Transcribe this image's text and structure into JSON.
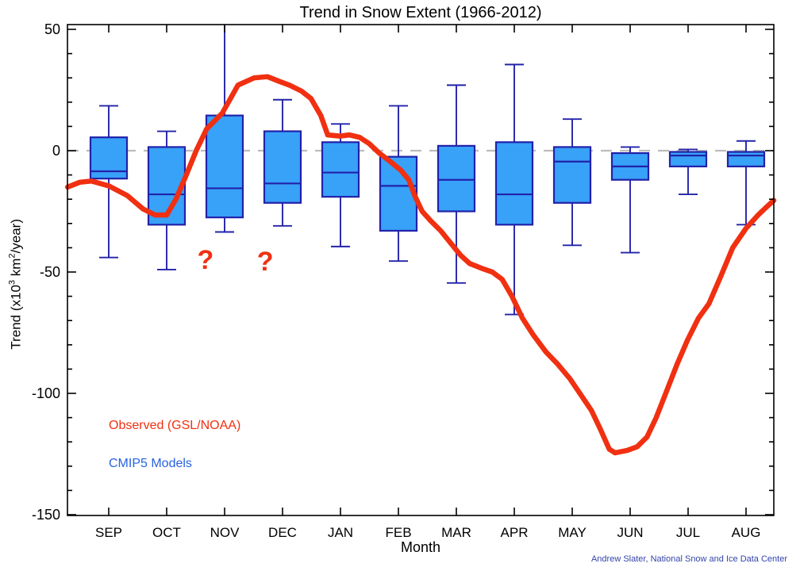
{
  "header": {
    "title": "Trend in Snow Extent (1966-2012)"
  },
  "chart_data": {
    "type": "box",
    "title": "Trend in Snow Extent (1966-2012)",
    "xlabel": "Month",
    "ylabel": "Trend (x10^3 km^2/year)",
    "ylabel_parts": {
      "pre": "Trend (x10",
      "sup1": "3",
      "mid": " km",
      "sup2": "2",
      "post": "/year)"
    },
    "x_categories": [
      "SEP",
      "OCT",
      "NOV",
      "DEC",
      "JAN",
      "FEB",
      "MAR",
      "APR",
      "MAY",
      "JUN",
      "JUL",
      "AUG"
    ],
    "y_axis": {
      "min": -150.3,
      "max": 52,
      "major_ticks": [
        {
          "value": 50,
          "label": "50"
        },
        {
          "value": 0,
          "label": "0"
        },
        {
          "value": -50,
          "label": "-50"
        },
        {
          "value": -100,
          "label": "-100"
        },
        {
          "value": -150,
          "label": "-150"
        }
      ],
      "minor_step": 10
    },
    "zero_line": {
      "value": 0,
      "style": "dashed"
    },
    "grid": "off",
    "legend_position": "lower-left-inside",
    "series": [
      {
        "name": "Observed (GSL/NOAA)",
        "type": "line",
        "color": "#f03011",
        "points_month_value": [
          [
            -0.71,
            -15
          ],
          [
            -0.5,
            -13
          ],
          [
            -0.3,
            -12.5
          ],
          [
            0,
            -14.5
          ],
          [
            0.32,
            -18.5
          ],
          [
            0.59,
            -24
          ],
          [
            0.8,
            -26.5
          ],
          [
            1,
            -26.5
          ],
          [
            1.16,
            -20
          ],
          [
            1.33,
            -10.5
          ],
          [
            1.51,
            0
          ],
          [
            1.69,
            9
          ],
          [
            1.96,
            15.5
          ],
          [
            2.23,
            27
          ],
          [
            2.51,
            30
          ],
          [
            2.74,
            30.5
          ],
          [
            2.95,
            28.5
          ],
          [
            3.12,
            27
          ],
          [
            3.33,
            24.5
          ],
          [
            3.49,
            21.5
          ],
          [
            3.66,
            14.5
          ],
          [
            3.78,
            6.5
          ],
          [
            3.99,
            6
          ],
          [
            4.15,
            6.5
          ],
          [
            4.33,
            5.5
          ],
          [
            4.49,
            3
          ],
          [
            4.67,
            -1
          ],
          [
            4.86,
            -4.5
          ],
          [
            5.04,
            -8
          ],
          [
            5.18,
            -12
          ],
          [
            5.29,
            -19
          ],
          [
            5.41,
            -25
          ],
          [
            5.56,
            -29
          ],
          [
            5.73,
            -33
          ],
          [
            5.9,
            -38
          ],
          [
            6.07,
            -43
          ],
          [
            6.23,
            -46.5
          ],
          [
            6.44,
            -48.5
          ],
          [
            6.62,
            -50
          ],
          [
            6.79,
            -53
          ],
          [
            6.96,
            -60
          ],
          [
            7.14,
            -69
          ],
          [
            7.33,
            -76
          ],
          [
            7.55,
            -83
          ],
          [
            7.75,
            -88
          ],
          [
            7.96,
            -94
          ],
          [
            8.16,
            -101
          ],
          [
            8.33,
            -107
          ],
          [
            8.49,
            -115
          ],
          [
            8.64,
            -123
          ],
          [
            8.74,
            -124.5
          ],
          [
            8.95,
            -123.5
          ],
          [
            9.12,
            -122
          ],
          [
            9.29,
            -118
          ],
          [
            9.45,
            -110
          ],
          [
            9.63,
            -99
          ],
          [
            9.81,
            -88
          ],
          [
            9.99,
            -78
          ],
          [
            10.18,
            -69
          ],
          [
            10.36,
            -63
          ],
          [
            10.56,
            -52
          ],
          [
            10.77,
            -40
          ],
          [
            11,
            -32
          ],
          [
            11.21,
            -26.5
          ],
          [
            11.34,
            -23.5
          ],
          [
            11.48,
            -20.5
          ]
        ]
      },
      {
        "name": "CMIP5 Models",
        "type": "boxplot",
        "fill": "#38a1f8",
        "edge": "#2222aa",
        "boxes": [
          {
            "month": "SEP",
            "whisker_high": 18.5,
            "q3": 5.5,
            "median": -8.5,
            "q1": -11.5,
            "whisker_low": -44,
            "clipped_high": false
          },
          {
            "month": "OCT",
            "whisker_high": 8,
            "q3": 1.5,
            "median": -18,
            "q1": -30.5,
            "whisker_low": -49,
            "clipped_high": false
          },
          {
            "month": "NOV",
            "whisker_high": 52,
            "q3": 14.5,
            "median": -15.5,
            "q1": -27.5,
            "whisker_low": -33.5,
            "clipped_high": true
          },
          {
            "month": "DEC",
            "whisker_high": 21,
            "q3": 8,
            "median": -13.5,
            "q1": -21.5,
            "whisker_low": -31,
            "clipped_high": false
          },
          {
            "month": "JAN",
            "whisker_high": 11,
            "q3": 3.5,
            "median": -9,
            "q1": -19,
            "whisker_low": -39.5,
            "clipped_high": false
          },
          {
            "month": "FEB",
            "whisker_high": 18.5,
            "q3": -2.5,
            "median": -14.5,
            "q1": -33,
            "whisker_low": -45.5,
            "clipped_high": false
          },
          {
            "month": "MAR",
            "whisker_high": 27,
            "q3": 2,
            "median": -12,
            "q1": -25,
            "whisker_low": -54.5,
            "clipped_high": false
          },
          {
            "month": "APR",
            "whisker_high": 35.5,
            "q3": 3.5,
            "median": -18,
            "q1": -30.5,
            "whisker_low": -67.5,
            "clipped_high": false
          },
          {
            "month": "MAY",
            "whisker_high": 13,
            "q3": 1.5,
            "median": -4.5,
            "q1": -21.5,
            "whisker_low": -39,
            "clipped_high": false
          },
          {
            "month": "JUN",
            "whisker_high": 1.5,
            "q3": -1,
            "median": -6.5,
            "q1": -12,
            "whisker_low": -42,
            "clipped_high": false
          },
          {
            "month": "JUL",
            "whisker_high": 0.5,
            "q3": -0.5,
            "median": -2,
            "q1": -6.5,
            "whisker_low": -18,
            "clipped_high": false
          },
          {
            "month": "AUG",
            "whisker_high": 4,
            "q3": -0.5,
            "median": -2,
            "q1": -6.5,
            "whisker_low": -30.5,
            "clipped_high": false
          }
        ]
      }
    ],
    "annotations": [
      {
        "text": "?",
        "month_x": 1.67,
        "value_y": -44.8
      },
      {
        "text": "?",
        "month_x": 2.7,
        "value_y": -45.4
      }
    ],
    "credit": "Andrew Slater, National Snow and Ice Data Center",
    "colors": {
      "axis": "#000000",
      "zero_line": "#bcbcbc",
      "observed_red": "#f03011",
      "box_fill": "#38a1f8",
      "box_edge": "#2222aa",
      "legend_models_blue": "#2962e0",
      "credit_blue": "#3344aa",
      "annotation_red": "#f03011"
    }
  }
}
